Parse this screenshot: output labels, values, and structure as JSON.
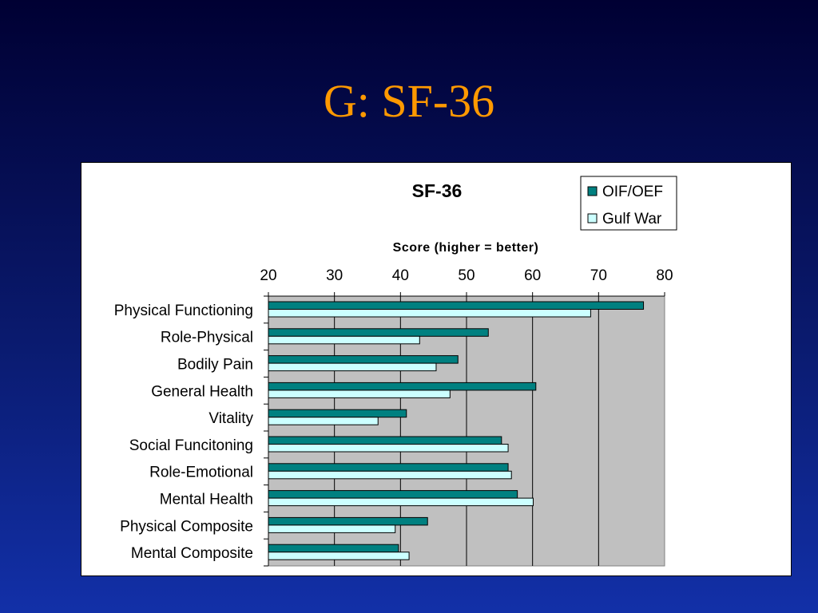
{
  "slide": {
    "title": "G: SF-36"
  },
  "chart_data": {
    "type": "bar",
    "orientation": "horizontal",
    "title": "SF-36",
    "xlabel": "Score (higher = better)",
    "ylabel": "",
    "xlim": [
      20,
      80
    ],
    "x_ticks": [
      20,
      30,
      40,
      50,
      60,
      70,
      80
    ],
    "x_axis_position": "top",
    "grid": true,
    "plot_background": "#c0c0c0",
    "legend": "top-right",
    "categories": [
      "Physical Functioning",
      "Role-Physical",
      "Bodily Pain",
      "General Health",
      "Vitality",
      "Social Funcitoning",
      "Role-Emotional",
      "Mental Health",
      "Physical Composite",
      "Mental Composite"
    ],
    "series": [
      {
        "name": "OIF/OEF",
        "color": "#008080",
        "values": [
          76.8,
          53.3,
          48.7,
          60.5,
          40.9,
          55.3,
          56.3,
          57.7,
          44.1,
          39.7
        ]
      },
      {
        "name": "Gulf War",
        "color": "#ccffff",
        "values": [
          68.8,
          42.9,
          45.4,
          47.5,
          36.6,
          56.3,
          56.8,
          60.1,
          39.2,
          41.3
        ]
      }
    ]
  }
}
